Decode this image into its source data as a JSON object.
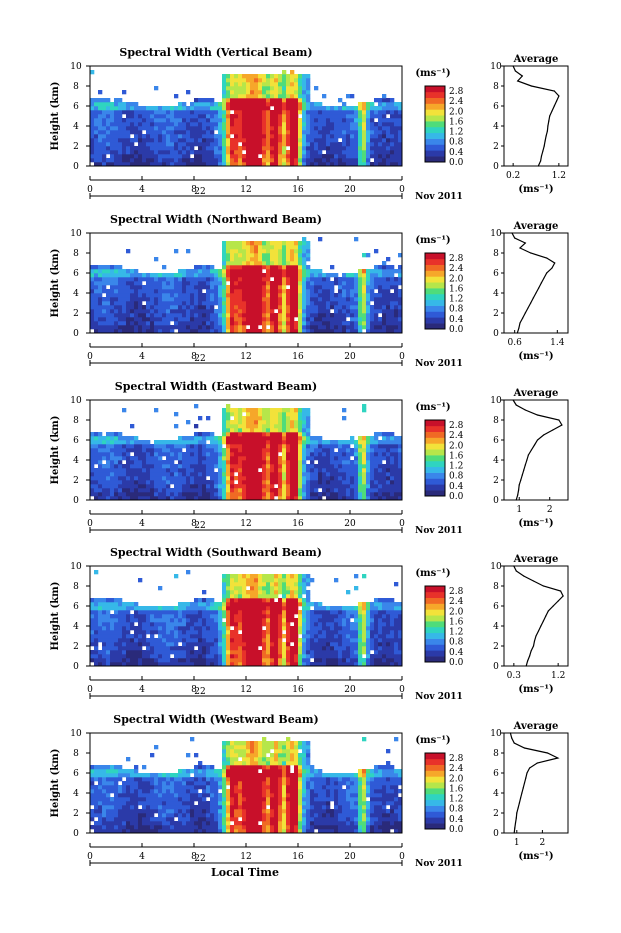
{
  "page": {
    "xlabel_bottom": "Local Time",
    "colorbar_unit": "(ms⁻¹)",
    "avg_title": "Average",
    "avg_xlabel": "(ms⁻¹)",
    "date_label": "Nov 2011",
    "day_label": "22",
    "ylabel": "Height (km)"
  },
  "colors": {
    "scale": [
      "#2a2a7a",
      "#2b3aa8",
      "#2f5ad6",
      "#3a86ea",
      "#36b8e8",
      "#2fd4c0",
      "#4fdc7a",
      "#b6e64a",
      "#f2e23a",
      "#f6a72a",
      "#f06a24",
      "#e8322a",
      "#c8102a"
    ]
  },
  "chart_data": [
    {
      "type": "heatmap",
      "title": "Spectral Width (Vertical Beam)",
      "xlabel": "",
      "ylabel": "Height (km)",
      "x_ticks": [
        "0",
        "4",
        "8",
        "12",
        "16",
        "20",
        "0"
      ],
      "y_ticks": [
        "0",
        "2",
        "4",
        "6",
        "8",
        "10"
      ],
      "xlim": [
        0,
        24
      ],
      "ylim": [
        0,
        10
      ],
      "colorbar_ticks": [
        "0.0",
        "0.4",
        "0.8",
        "1.2",
        "1.6",
        "2.0",
        "2.4",
        "2.8"
      ],
      "colorbar_range": [
        0.0,
        3.0
      ],
      "avg_profile": {
        "xticks": [
          "0.2",
          "1.2"
        ],
        "xlim": [
          0.0,
          1.4
        ],
        "height": [
          0,
          0.5,
          1,
          1.5,
          2,
          2.5,
          3,
          3.5,
          4,
          4.5,
          5,
          5.5,
          6,
          6.5,
          7,
          7.5,
          8,
          8.5,
          9,
          9.5,
          10
        ],
        "value": [
          0.75,
          0.8,
          0.82,
          0.85,
          0.88,
          0.9,
          0.92,
          0.95,
          0.96,
          0.98,
          1.0,
          1.05,
          1.1,
          1.15,
          1.2,
          1.1,
          0.6,
          0.3,
          0.4,
          0.25,
          0.2
        ]
      }
    },
    {
      "type": "heatmap",
      "title": "Spectral Width (Northward Beam)",
      "xlabel": "",
      "ylabel": "Height (km)",
      "x_ticks": [
        "0",
        "4",
        "8",
        "12",
        "16",
        "20",
        "0"
      ],
      "y_ticks": [
        "0",
        "2",
        "4",
        "6",
        "8",
        "10"
      ],
      "xlim": [
        0,
        24
      ],
      "ylim": [
        0,
        10
      ],
      "colorbar_ticks": [
        "0.0",
        "0.4",
        "0.8",
        "1.2",
        "1.6",
        "2.0",
        "2.4",
        "2.8"
      ],
      "colorbar_range": [
        0.0,
        3.0
      ],
      "avg_profile": {
        "xticks": [
          "0.6",
          "1.4"
        ],
        "xlim": [
          0.4,
          1.6
        ],
        "height": [
          0,
          0.5,
          1,
          1.5,
          2,
          2.5,
          3,
          3.5,
          4,
          4.5,
          5,
          5.5,
          6,
          6.5,
          7,
          7.5,
          8,
          8.5,
          9,
          9.5,
          10
        ],
        "value": [
          0.65,
          0.68,
          0.7,
          0.75,
          0.8,
          0.85,
          0.9,
          0.95,
          1.0,
          1.05,
          1.1,
          1.15,
          1.2,
          1.3,
          1.35,
          1.2,
          0.9,
          0.7,
          0.8,
          0.6,
          0.55
        ]
      }
    },
    {
      "type": "heatmap",
      "title": "Spectral Width (Eastward Beam)",
      "xlabel": "",
      "ylabel": "Height (km)",
      "x_ticks": [
        "0",
        "4",
        "8",
        "12",
        "16",
        "20",
        "0"
      ],
      "y_ticks": [
        "0",
        "2",
        "4",
        "6",
        "8",
        "10"
      ],
      "xlim": [
        0,
        24
      ],
      "ylim": [
        0,
        10
      ],
      "colorbar_ticks": [
        "0.0",
        "0.4",
        "0.8",
        "1.2",
        "1.6",
        "2.0",
        "2.4",
        "2.8"
      ],
      "colorbar_range": [
        0.0,
        3.0
      ],
      "avg_profile": {
        "xticks": [
          "1",
          "2"
        ],
        "xlim": [
          0.5,
          2.6
        ],
        "height": [
          0,
          0.5,
          1,
          1.5,
          2,
          2.5,
          3,
          3.5,
          4,
          4.5,
          5,
          5.5,
          6,
          6.5,
          7,
          7.5,
          8,
          8.5,
          9,
          9.5,
          10
        ],
        "value": [
          0.9,
          0.95,
          0.98,
          1.0,
          1.05,
          1.1,
          1.15,
          1.2,
          1.25,
          1.3,
          1.4,
          1.5,
          1.6,
          1.8,
          2.1,
          2.4,
          2.3,
          1.6,
          1.2,
          0.9,
          0.8
        ]
      }
    },
    {
      "type": "heatmap",
      "title": "Spectral Width (Southward Beam)",
      "xlabel": "",
      "ylabel": "Height (km)",
      "x_ticks": [
        "0",
        "4",
        "8",
        "12",
        "16",
        "20",
        "0"
      ],
      "y_ticks": [
        "0",
        "2",
        "4",
        "6",
        "8",
        "10"
      ],
      "xlim": [
        0,
        24
      ],
      "ylim": [
        0,
        10
      ],
      "colorbar_ticks": [
        "0.0",
        "0.4",
        "0.8",
        "1.2",
        "1.6",
        "2.0",
        "2.4",
        "2.8"
      ],
      "colorbar_range": [
        0.0,
        3.0
      ],
      "avg_profile": {
        "xticks": [
          "0.3",
          "1.2"
        ],
        "xlim": [
          0.1,
          1.4
        ],
        "height": [
          0,
          0.5,
          1,
          1.5,
          2,
          2.5,
          3,
          3.5,
          4,
          4.5,
          5,
          5.5,
          6,
          6.5,
          7,
          7.5,
          8,
          8.5,
          9,
          9.5,
          10
        ],
        "value": [
          0.55,
          0.58,
          0.62,
          0.65,
          0.7,
          0.72,
          0.75,
          0.8,
          0.85,
          0.9,
          0.95,
          1.0,
          1.1,
          1.2,
          1.3,
          1.25,
          0.9,
          0.7,
          0.5,
          0.35,
          0.3
        ]
      }
    },
    {
      "type": "heatmap",
      "title": "Spectral Width (Westward Beam)",
      "xlabel": "Local Time",
      "ylabel": "Height (km)",
      "x_ticks": [
        "0",
        "4",
        "8",
        "12",
        "16",
        "20",
        "0"
      ],
      "y_ticks": [
        "0",
        "2",
        "4",
        "6",
        "8",
        "10"
      ],
      "xlim": [
        0,
        24
      ],
      "ylim": [
        0,
        10
      ],
      "colorbar_ticks": [
        "0.0",
        "0.4",
        "0.8",
        "1.2",
        "1.6",
        "2.0",
        "2.4",
        "2.8"
      ],
      "colorbar_range": [
        0.0,
        3.0
      ],
      "avg_profile": {
        "xticks": [
          "1",
          "2"
        ],
        "xlim": [
          0.5,
          3.0
        ],
        "height": [
          0,
          0.5,
          1,
          1.5,
          2,
          2.5,
          3,
          3.5,
          4,
          4.5,
          5,
          5.5,
          6,
          6.5,
          7,
          7.5,
          8,
          8.5,
          9,
          9.5,
          10
        ],
        "value": [
          0.9,
          0.92,
          0.95,
          0.98,
          1.0,
          1.05,
          1.1,
          1.15,
          1.2,
          1.25,
          1.3,
          1.35,
          1.4,
          1.5,
          1.8,
          2.6,
          2.2,
          1.3,
          0.9,
          0.8,
          0.75
        ]
      }
    }
  ]
}
